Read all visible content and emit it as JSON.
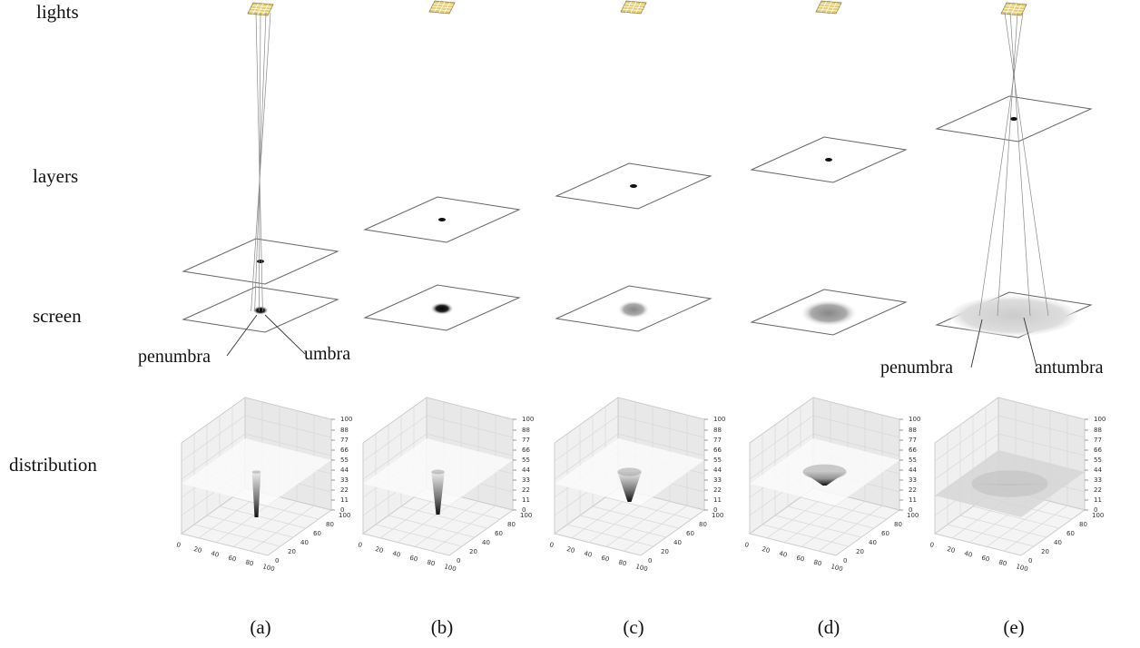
{
  "row_labels": [
    "lights",
    "layers",
    "screen",
    "distribution"
  ],
  "panels": [
    {
      "label": "(a)",
      "annotations": [
        "penumbra",
        "umbra"
      ]
    },
    {
      "label": "(b)"
    },
    {
      "label": "(c)"
    },
    {
      "label": "(d)"
    },
    {
      "label": "(e)",
      "annotations": [
        "penumbra",
        "antumbra"
      ]
    }
  ],
  "distribution_axes": {
    "z_ticks": [
      0,
      11,
      22,
      33,
      44,
      55,
      66,
      77,
      88,
      100
    ],
    "x_ticks": [
      0,
      20,
      40,
      60,
      80,
      100
    ],
    "y_ticks": [
      0,
      20,
      40,
      60,
      80,
      100
    ]
  }
}
